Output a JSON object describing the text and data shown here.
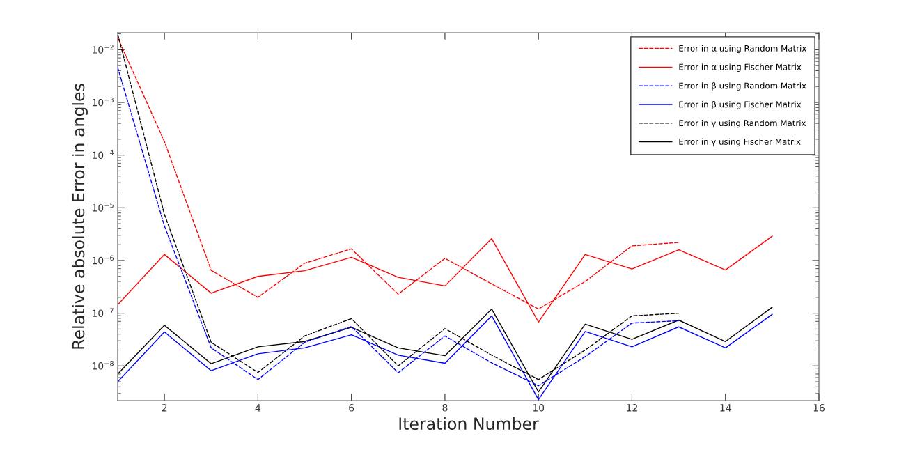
{
  "chart_data": {
    "type": "line",
    "xlabel": "Iteration Number",
    "ylabel": "Relative absolute Error in angles",
    "log": "y",
    "xlim": [
      1,
      16
    ],
    "xticks": [
      2,
      4,
      6,
      8,
      10,
      12,
      14,
      16
    ],
    "ylim": [
      2.2e-09,
      0.021
    ],
    "yticks": [
      {
        "value": 1e-08,
        "label": "10$^{−8}$"
      },
      {
        "value": 1e-07,
        "label": "10$^{−7}$"
      },
      {
        "value": 1e-06,
        "label": "10$^{−6}$"
      },
      {
        "value": 1e-05,
        "label": "10$^{−5}$"
      },
      {
        "value": 0.0001,
        "label": "10$^{−4}$"
      },
      {
        "value": 0.001,
        "label": "10$^{−3}$"
      },
      {
        "value": 0.01,
        "label": "10$^{−2}$"
      }
    ],
    "grid": false,
    "legend": "top right",
    "marker": "none",
    "series": [
      {
        "name": "Error in α using Random Matrix",
        "color": "#ff0000",
        "line_style": "dashed",
        "x": [
          1,
          2,
          3,
          4,
          5,
          6,
          7,
          8,
          9,
          10,
          11,
          12,
          13
        ],
        "values": [
          0.017,
          0.00018,
          6.5e-07,
          2e-07,
          8.9e-07,
          1.66e-06,
          2.3e-07,
          1.1e-06,
          3.6e-07,
          1.2e-07,
          4e-07,
          1.9e-06,
          2.2e-06
        ]
      },
      {
        "name": "Error in α using Fischer Matrix",
        "color": "#ff0000",
        "line_style": "solid",
        "x": [
          1,
          2,
          3,
          4,
          5,
          6,
          7,
          8,
          9,
          10,
          11,
          12,
          13,
          14,
          15
        ],
        "values": [
          1.45e-07,
          1.3e-06,
          2.4e-07,
          5e-07,
          6.4e-07,
          1.15e-06,
          4.8e-07,
          3.3e-07,
          2.6e-06,
          6.8e-08,
          1.3e-06,
          6.9e-07,
          1.6e-06,
          6.6e-07,
          2.9e-06
        ]
      },
      {
        "name": "Error in β using Random Matrix",
        "color": "#0000ff",
        "line_style": "dashed",
        "x": [
          1,
          2,
          3,
          4,
          5,
          6,
          7,
          8,
          9,
          10,
          11,
          12,
          13
        ],
        "values": [
          0.0046,
          4.5e-06,
          2.2e-08,
          5.5e-09,
          2.8e-08,
          5.6e-08,
          7.4e-09,
          3.7e-08,
          1.14e-08,
          4.2e-09,
          1.5e-08,
          6.5e-08,
          7.2e-08
        ]
      },
      {
        "name": "Error in β using Fischer Matrix",
        "color": "#0000ff",
        "line_style": "solid",
        "x": [
          1,
          2,
          3,
          4,
          5,
          6,
          7,
          8,
          9,
          10,
          11,
          12,
          13,
          14,
          15
        ],
        "values": [
          5e-09,
          4.4e-08,
          8.1e-09,
          1.7e-08,
          2.2e-08,
          3.9e-08,
          1.6e-08,
          1.12e-08,
          8.9e-08,
          2.3e-09,
          4.5e-08,
          2.3e-08,
          5.5e-08,
          2.2e-08,
          9.5e-08
        ]
      },
      {
        "name": "Error in γ using Random Matrix",
        "color": "#000000",
        "line_style": "dashed",
        "x": [
          1,
          2,
          3,
          4,
          5,
          6,
          7,
          8,
          9,
          10,
          11,
          12,
          13
        ],
        "values": [
          0.02,
          7.5e-06,
          2.8e-08,
          7.5e-09,
          3.7e-08,
          7.9e-08,
          1e-08,
          5.1e-08,
          1.6e-08,
          5.5e-09,
          2e-08,
          8.9e-08,
          1e-07
        ]
      },
      {
        "name": "Error in γ using Fischer Matrix",
        "color": "#000000",
        "line_style": "solid",
        "x": [
          1,
          2,
          3,
          4,
          5,
          6,
          7,
          8,
          9,
          10,
          11,
          12,
          13,
          14,
          15
        ],
        "values": [
          7e-09,
          5.9e-08,
          1.1e-08,
          2.3e-08,
          2.9e-08,
          5.4e-08,
          2.2e-08,
          1.56e-08,
          1.2e-07,
          3.2e-09,
          6.2e-08,
          3.2e-08,
          7.4e-08,
          2.9e-08,
          1.3e-07
        ]
      }
    ]
  }
}
